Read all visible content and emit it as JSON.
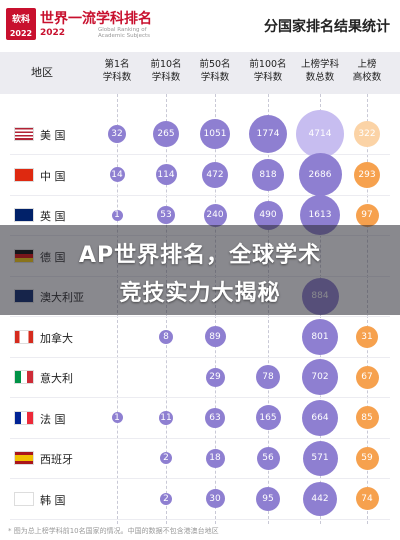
{
  "header": {
    "logo_text": "软科",
    "logo_year": "2022",
    "brand": "世界一流学科排名",
    "brand_sub": "2022",
    "brand_en": "Global Ranking of Academic Subjects",
    "doc_title": "分国家排名结果统计"
  },
  "columns": [
    {
      "id": "region",
      "label": "地区"
    },
    {
      "id": "top1",
      "label": "第1名\n学科数"
    },
    {
      "id": "top10",
      "label": "前10名\n学科数"
    },
    {
      "id": "top50",
      "label": "前50名\n学科数"
    },
    {
      "id": "top100",
      "label": "前100名\n学科数"
    },
    {
      "id": "listed",
      "label": "上榜学科\n数总数"
    },
    {
      "id": "unis",
      "label": "上榜\n高校数"
    }
  ],
  "rows": [
    {
      "name": "美 国",
      "flag": "us",
      "top1": "32",
      "top10": "265",
      "top50": "1051",
      "top100": "1774",
      "listed": "4714",
      "unis": "322"
    },
    {
      "name": "中 国",
      "flag": "cn",
      "top1": "14",
      "top10": "114",
      "top50": "472",
      "top100": "818",
      "listed": "2686",
      "unis": "293"
    },
    {
      "name": "英 国",
      "flag": "uk",
      "top1": "1",
      "top10": "53",
      "top50": "240",
      "top100": "490",
      "listed": "1613",
      "unis": "97"
    },
    {
      "name": "德 国",
      "flag": "de",
      "top1": "",
      "top10": "",
      "top50": "",
      "top100": "",
      "listed": "",
      "unis": ""
    },
    {
      "name": "澳大利亚",
      "flag": "au",
      "top1": "",
      "top10": "",
      "top50": "",
      "top100": "",
      "listed": "884",
      "unis": ""
    },
    {
      "name": "加拿大",
      "flag": "ca",
      "top1": "",
      "top10": "8",
      "top50": "89",
      "top100": "",
      "listed": "801",
      "unis": "31"
    },
    {
      "name": "意大利",
      "flag": "it",
      "top1": "",
      "top10": "",
      "top50": "29",
      "top100": "78",
      "listed": "702",
      "unis": "67"
    },
    {
      "name": "法 国",
      "flag": "fr",
      "top1": "1",
      "top10": "11",
      "top50": "63",
      "top100": "165",
      "listed": "664",
      "unis": "85"
    },
    {
      "name": "西班牙",
      "flag": "es",
      "top1": "",
      "top10": "2",
      "top50": "18",
      "top100": "56",
      "listed": "571",
      "unis": "59"
    },
    {
      "name": "韩 国",
      "flag": "kr",
      "top1": "",
      "top10": "2",
      "top50": "30",
      "top100": "95",
      "listed": "442",
      "unis": "74"
    }
  ],
  "overlay": {
    "line1": "AP世界排名，全球学术",
    "line2": "竞技实力大揭秘"
  },
  "footnote": "* 图为总上榜学科前10名国家的情况。中国的数据不包含港澳台地区",
  "colors": {
    "purple": "#8e7fd1",
    "purple_light": "#c7bdf0",
    "orange": "#f6a14e",
    "orange_light": "#fbd3a6"
  }
}
